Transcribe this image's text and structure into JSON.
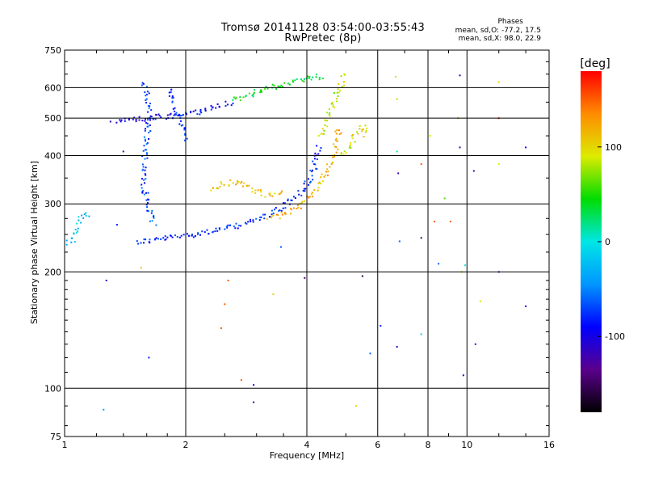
{
  "header": {
    "title_line1": "Tromsø 20141128 03:54:00-03:55:43",
    "title_line2": "RwPretec (8p)"
  },
  "stats": {
    "heading": "Phases",
    "o_line": "mean, sd,O: -77.2, 17.5",
    "x_line": "mean, sd,X:  98.0, 22.9"
  },
  "colorbar": {
    "label": "[deg]",
    "ticks": [
      "100",
      "0",
      "-100"
    ],
    "tick_values": [
      100,
      0,
      -100
    ],
    "range": [
      -180,
      180
    ],
    "colormap": "rainbow (black-purple-blue-cyan-green-yellow-orange-red)"
  },
  "chart_data": {
    "type": "scatter",
    "xlabel": "Frequency [MHz]",
    "ylabel": "Stationary phase Virtual Height [km]",
    "xscale": "log",
    "yscale": "log",
    "xlim": [
      1,
      16
    ],
    "ylim": [
      75,
      750
    ],
    "xticks": [
      "1",
      "2",
      "4",
      "6",
      "8",
      "10",
      "16"
    ],
    "xtick_values": [
      1,
      2,
      4,
      6,
      8,
      10,
      16
    ],
    "yticks": [
      "750",
      "600",
      "500",
      "400",
      "300",
      "200",
      "100",
      "75"
    ],
    "ytick_values": [
      750,
      600,
      500,
      400,
      300,
      200,
      100,
      75
    ],
    "grid": true,
    "traces": [
      {
        "x": [
          1.5,
          1.6,
          1.7,
          1.8,
          1.9,
          2.0,
          2.2,
          2.4,
          2.6,
          2.8,
          3.0,
          3.2,
          3.4,
          3.6,
          3.8,
          4.0,
          4.1,
          4.2,
          4.3
        ],
        "y": [
          240,
          242,
          244,
          246,
          248,
          250,
          254,
          258,
          262,
          268,
          275,
          283,
          292,
          305,
          320,
          340,
          360,
          390,
          430
        ],
        "phase": -80
      },
      {
        "x": [
          3.2,
          3.4,
          3.6,
          3.8,
          4.0,
          4.2,
          4.4,
          4.6,
          4.7,
          4.8
        ],
        "y": [
          275,
          280,
          288,
          298,
          312,
          330,
          355,
          390,
          430,
          480
        ],
        "phase": 120
      },
      {
        "x": [
          4.3,
          4.4,
          4.5,
          4.6,
          4.7,
          4.8,
          4.9,
          5.0
        ],
        "y": [
          450,
          480,
          510,
          540,
          570,
          600,
          630,
          650
        ],
        "phase": 80
      },
      {
        "x": [
          1.35,
          1.45,
          1.55,
          1.65,
          1.75,
          1.9,
          2.0,
          2.2,
          2.4,
          2.6
        ],
        "y": [
          495,
          498,
          500,
          503,
          506,
          510,
          515,
          525,
          540,
          555
        ],
        "phase": -90
      },
      {
        "x": [
          2.6,
          2.9,
          3.2,
          3.5,
          3.8,
          4.1,
          4.4
        ],
        "y": [
          560,
          580,
          600,
          615,
          630,
          640,
          645
        ],
        "phase": 40
      },
      {
        "x": [
          1.55,
          1.6,
          1.62,
          1.6,
          1.58,
          1.56,
          1.58,
          1.62,
          1.66
        ],
        "y": [
          620,
          580,
          520,
          460,
          410,
          360,
          320,
          290,
          265
        ],
        "phase": -70
      },
      {
        "x": [
          1.82,
          1.85,
          1.9,
          1.95,
          2.0
        ],
        "y": [
          600,
          560,
          520,
          480,
          440
        ],
        "phase": -75
      },
      {
        "x": [
          2.3,
          2.5,
          2.7,
          2.9,
          3.1,
          3.3,
          3.5
        ],
        "y": [
          330,
          340,
          345,
          330,
          320,
          315,
          325
        ],
        "phase": 110
      },
      {
        "x": [
          4.9,
          5.1,
          5.3,
          5.5,
          5.6
        ],
        "y": [
          400,
          430,
          460,
          480,
          450
        ],
        "phase": 95
      },
      {
        "x": [
          1.0,
          1.05,
          1.1,
          1.15
        ],
        "y": [
          240,
          245,
          280,
          285
        ],
        "phase": -20
      }
    ],
    "isolated_points": [
      {
        "x": 1.3,
        "y": 490,
        "phase": -110
      },
      {
        "x": 1.4,
        "y": 410,
        "phase": -120
      },
      {
        "x": 1.35,
        "y": 265,
        "phase": -80
      },
      {
        "x": 1.27,
        "y": 190,
        "phase": -110
      },
      {
        "x": 1.25,
        "y": 88,
        "phase": -40
      },
      {
        "x": 1.62,
        "y": 120,
        "phase": -80
      },
      {
        "x": 1.55,
        "y": 205,
        "phase": 110
      },
      {
        "x": 2.45,
        "y": 143,
        "phase": 150
      },
      {
        "x": 2.5,
        "y": 165,
        "phase": 150
      },
      {
        "x": 2.55,
        "y": 190,
        "phase": 150
      },
      {
        "x": 2.75,
        "y": 105,
        "phase": 150
      },
      {
        "x": 2.95,
        "y": 102,
        "phase": -100
      },
      {
        "x": 2.95,
        "y": 92,
        "phase": -130
      },
      {
        "x": 3.3,
        "y": 175,
        "phase": 100
      },
      {
        "x": 3.45,
        "y": 232,
        "phase": -60
      },
      {
        "x": 3.95,
        "y": 193,
        "phase": -140
      },
      {
        "x": 5.3,
        "y": 90,
        "phase": 100
      },
      {
        "x": 5.5,
        "y": 195,
        "phase": -160
      },
      {
        "x": 5.75,
        "y": 123,
        "phase": -60
      },
      {
        "x": 6.1,
        "y": 145,
        "phase": -80
      },
      {
        "x": 6.65,
        "y": 640,
        "phase": 100
      },
      {
        "x": 6.7,
        "y": 560,
        "phase": 80
      },
      {
        "x": 6.7,
        "y": 410,
        "phase": 10
      },
      {
        "x": 6.75,
        "y": 360,
        "phase": -120
      },
      {
        "x": 6.8,
        "y": 240,
        "phase": -60
      },
      {
        "x": 6.7,
        "y": 128,
        "phase": -110
      },
      {
        "x": 7.7,
        "y": 380,
        "phase": 150
      },
      {
        "x": 7.7,
        "y": 245,
        "phase": -150
      },
      {
        "x": 7.7,
        "y": 138,
        "phase": -10
      },
      {
        "x": 8.1,
        "y": 450,
        "phase": 90
      },
      {
        "x": 8.3,
        "y": 270,
        "phase": 150
      },
      {
        "x": 8.5,
        "y": 210,
        "phase": -60
      },
      {
        "x": 8.8,
        "y": 310,
        "phase": 60
      },
      {
        "x": 9.1,
        "y": 270,
        "phase": 150
      },
      {
        "x": 9.5,
        "y": 500,
        "phase": 70
      },
      {
        "x": 9.6,
        "y": 420,
        "phase": -120
      },
      {
        "x": 9.6,
        "y": 645,
        "phase": -110
      },
      {
        "x": 9.7,
        "y": 200,
        "phase": 80
      },
      {
        "x": 9.8,
        "y": 108,
        "phase": -100
      },
      {
        "x": 9.9,
        "y": 208,
        "phase": 0
      },
      {
        "x": 10.4,
        "y": 365,
        "phase": -120
      },
      {
        "x": 10.5,
        "y": 130,
        "phase": -80
      },
      {
        "x": 10.8,
        "y": 168,
        "phase": 90
      },
      {
        "x": 12.0,
        "y": 620,
        "phase": 100
      },
      {
        "x": 12.0,
        "y": 500,
        "phase": 170
      },
      {
        "x": 12.0,
        "y": 380,
        "phase": 90
      },
      {
        "x": 12.0,
        "y": 200,
        "phase": -120
      },
      {
        "x": 14.0,
        "y": 420,
        "phase": -100
      },
      {
        "x": 14.0,
        "y": 163,
        "phase": -90
      }
    ]
  }
}
